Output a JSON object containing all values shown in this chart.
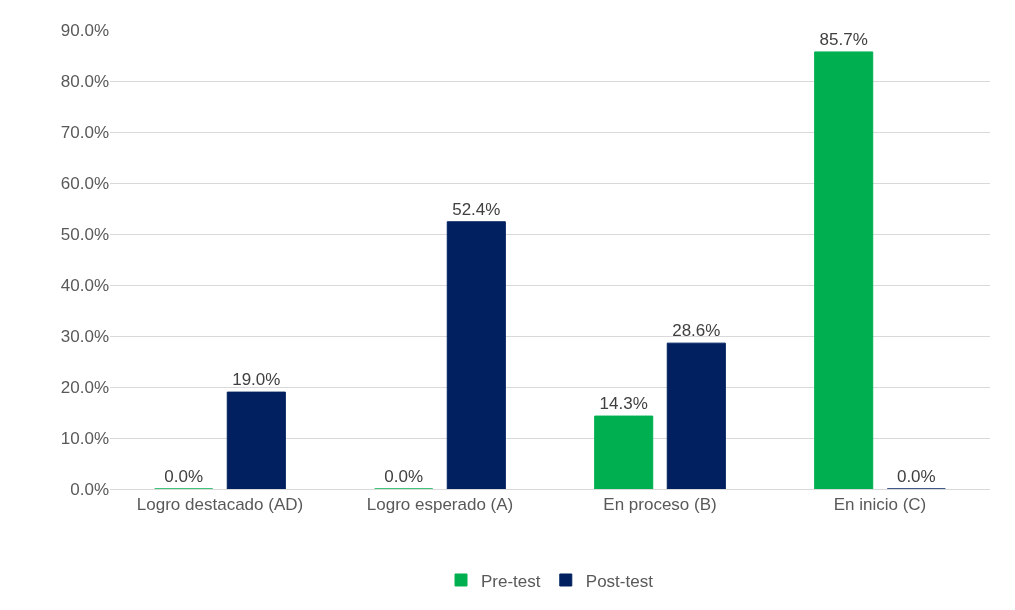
{
  "chart_data": {
    "type": "bar",
    "categories": [
      "Logro destacado (AD)",
      "Logro esperado (A)",
      "En proceso (B)",
      "En inicio (C)"
    ],
    "series": [
      {
        "name": "Pre-test",
        "color": "#00b050",
        "values": [
          0.0,
          0.0,
          14.3,
          85.7
        ],
        "value_labels": [
          "0.0%",
          "0.0%",
          "14.3%",
          "85.7%"
        ]
      },
      {
        "name": "Post-test",
        "color": "#002060",
        "values": [
          19.0,
          52.4,
          28.6,
          0.0
        ],
        "value_labels": [
          "19.0%",
          "52.4%",
          "28.6%",
          "0.0%"
        ]
      }
    ],
    "ylim": [
      0,
      90
    ],
    "yticks": [
      {
        "value": 0,
        "label": "0.0%"
      },
      {
        "value": 10,
        "label": "10.0%"
      },
      {
        "value": 20,
        "label": "20.0%"
      },
      {
        "value": 30,
        "label": "30.0%"
      },
      {
        "value": 40,
        "label": "40.0%"
      },
      {
        "value": 50,
        "label": "50.0%"
      },
      {
        "value": 60,
        "label": "60.0%"
      },
      {
        "value": 70,
        "label": "70.0%"
      },
      {
        "value": 80,
        "label": "80.0%"
      },
      {
        "value": 90,
        "label": "90.0%"
      }
    ],
    "grid": "y",
    "legend": "bottom"
  }
}
